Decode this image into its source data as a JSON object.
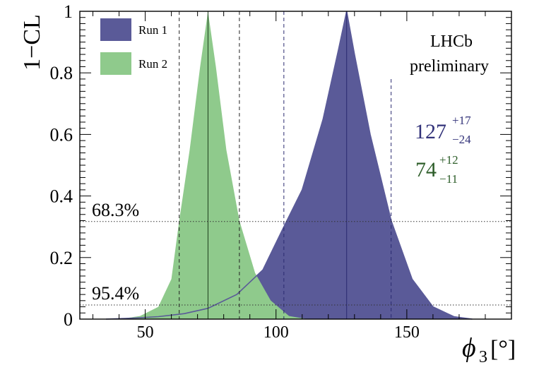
{
  "chart_data": {
    "type": "area",
    "ylabel": "1−CL",
    "xlabel_symbol": "ϕ",
    "xlabel_subscript": "3",
    "xlabel_unit": "[°]",
    "xlim": [
      25,
      190
    ],
    "ylim": [
      0,
      1
    ],
    "x_ticks": [
      "50",
      "100",
      "150"
    ],
    "x_tick_values": [
      50,
      100,
      150
    ],
    "y_ticks": [
      "0",
      "0.2",
      "0.4",
      "0.6",
      "0.8",
      "1"
    ],
    "y_tick_values": [
      0,
      0.2,
      0.4,
      0.6,
      0.8,
      1
    ],
    "legend": {
      "placement": "top-left",
      "entries": [
        {
          "name": "Run 1",
          "color": "#5a5a98"
        },
        {
          "name": "Run 2",
          "color": "#8fca8c"
        }
      ]
    },
    "series": [
      {
        "name": "Run 1",
        "color": "#5a5a98",
        "central": 127,
        "err_up": 17,
        "err_down": 24,
        "band_lines": [
          103,
          127,
          144
        ],
        "result_label": {
          "central": "127",
          "up": "+17",
          "down": "−24",
          "color": "#33337a"
        },
        "x": [
          35,
          45,
          55,
          65,
          74,
          85,
          95,
          103,
          110,
          118,
          124,
          127,
          130,
          136,
          144,
          152,
          160,
          168,
          175
        ],
        "y": [
          0.0,
          0.003,
          0.008,
          0.018,
          0.035,
          0.08,
          0.16,
          0.3,
          0.42,
          0.65,
          0.88,
          1.0,
          0.86,
          0.6,
          0.32,
          0.13,
          0.04,
          0.008,
          0.0
        ]
      },
      {
        "name": "Run 2",
        "color": "#8fca8c",
        "central": 74,
        "err_up": 12,
        "err_down": 11,
        "band_lines": [
          63,
          74,
          86
        ],
        "result_label": {
          "central": "74",
          "up": "+12",
          "down": "−11",
          "color": "#2e5e2a"
        },
        "x": [
          40,
          48,
          55,
          60,
          63,
          67,
          71,
          74,
          77,
          81,
          86,
          92,
          98,
          105,
          112
        ],
        "y": [
          0.0,
          0.01,
          0.04,
          0.13,
          0.32,
          0.55,
          0.82,
          1.0,
          0.82,
          0.55,
          0.32,
          0.15,
          0.06,
          0.01,
          0.0
        ]
      }
    ],
    "cl_lines": [
      {
        "value": 0.317,
        "label": "68.3%"
      },
      {
        "value": 0.046,
        "label": "95.4%"
      }
    ],
    "annotation": [
      "LHCb",
      "preliminary"
    ],
    "grid": false
  }
}
